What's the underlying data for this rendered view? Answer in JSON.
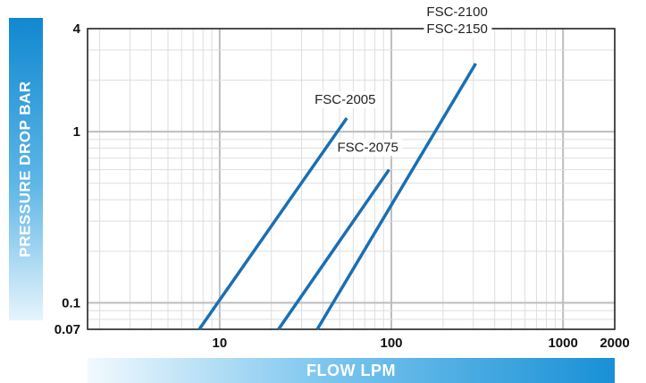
{
  "chart_data": {
    "type": "line",
    "title": "",
    "xlabel": "FLOW LPM",
    "ylabel": "PRESSURE DROP BAR",
    "xscale": "log",
    "yscale": "log",
    "xlim": [
      1.7,
      2000
    ],
    "ylim": [
      0.07,
      4
    ],
    "x_ticks": [
      10,
      100,
      1000,
      2000
    ],
    "x_tick_labels": [
      "10",
      "100",
      "1000",
      "2000"
    ],
    "y_ticks": [
      0.07,
      0.1,
      1,
      4
    ],
    "y_tick_labels": [
      "0.07",
      "0.1",
      "1",
      "4"
    ],
    "grid": true,
    "series": [
      {
        "name": "FSC-2005",
        "label": "FSC-2005",
        "x": [
          7.6,
          55
        ],
        "y": [
          0.07,
          1.2
        ]
      },
      {
        "name": "FSC-2075",
        "label": "FSC-2075",
        "x": [
          22,
          97
        ],
        "y": [
          0.07,
          0.6
        ]
      },
      {
        "name": "FSC-2100 / FSC-2150",
        "label": "FSC-2100",
        "label2": "FSC-2150",
        "x": [
          37,
          310
        ],
        "y": [
          0.07,
          2.5
        ]
      }
    ],
    "line_color": "#1a6fb3"
  }
}
